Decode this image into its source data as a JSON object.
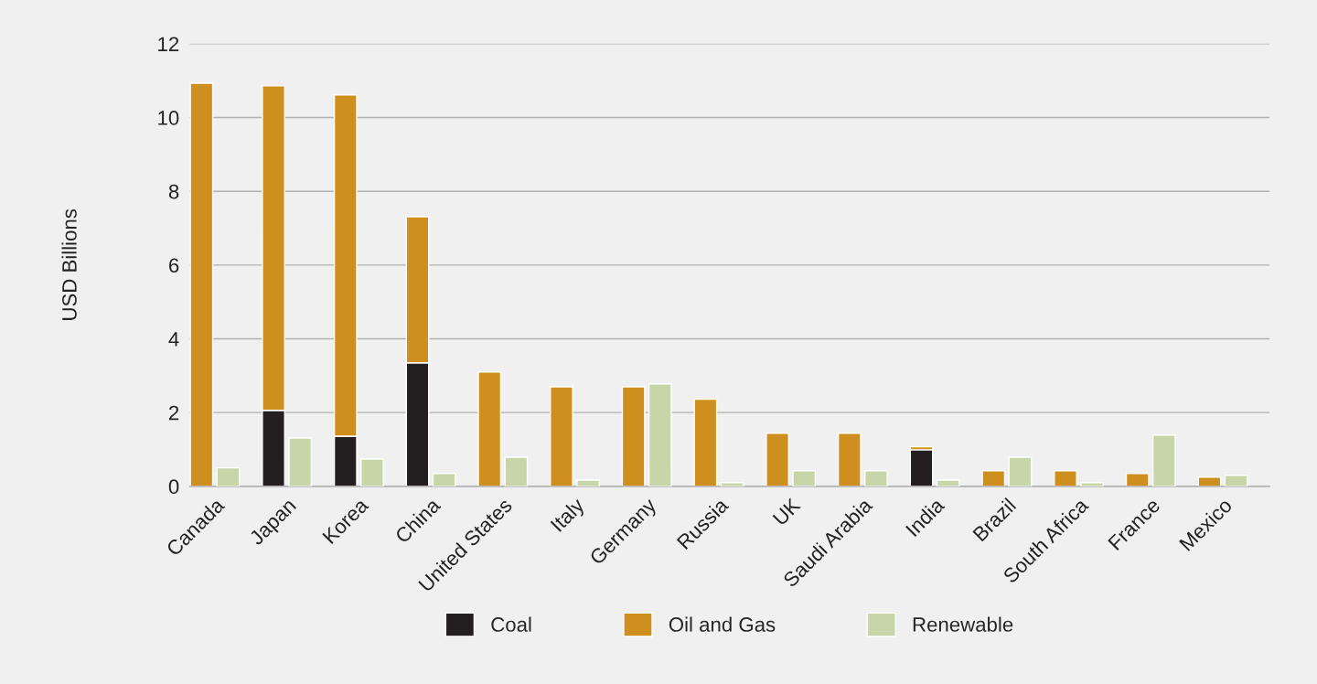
{
  "chart_data": [
    {
      "type": "bar",
      "stacked": true,
      "ylabel": "USD Billions",
      "categories": [
        "Canada",
        "Japan",
        "Korea",
        "China",
        "United States",
        "Italy",
        "Germany",
        "Russia",
        "UK",
        "Saudi Arabia",
        "India",
        "Brazil",
        "South Africa",
        "France",
        "Mexico"
      ],
      "series": [
        {
          "name": "Coal",
          "color": "#231f20",
          "values": [
            0,
            2.06,
            1.36,
            3.35,
            0,
            0,
            0,
            0,
            0,
            0,
            0.99,
            0,
            0,
            0,
            0
          ]
        },
        {
          "name": "Oil and Gas",
          "color": "#cf8f1e",
          "values": [
            10.93,
            8.8,
            9.25,
            3.96,
            3.1,
            2.7,
            2.7,
            2.36,
            1.44,
            1.44,
            0.08,
            0.42,
            0.42,
            0.35,
            0.25
          ]
        }
      ],
      "ylim": [
        0,
        12
      ],
      "yticks": [
        0,
        2,
        4,
        6,
        8,
        10,
        12
      ],
      "grid": "y",
      "legend": "bottom"
    },
    {
      "type": "bar",
      "categories": [
        null,
        null,
        null,
        null,
        null,
        null,
        null,
        null,
        null,
        null,
        null,
        null,
        null,
        null,
        null
      ],
      "series": [
        {
          "name": "Renewable",
          "color": "#c8d5a8",
          "values": [
            0.5,
            1.31,
            0.74,
            0.35,
            0.79,
            0.17,
            2.78,
            0.1,
            0.42,
            0.42,
            0.17,
            0.79,
            0.1,
            1.39,
            0.3
          ]
        }
      ],
      "ylim": [
        0,
        12
      ],
      "yticks": [
        0,
        2,
        4,
        6,
        8,
        10,
        12
      ],
      "tick_labels": false,
      "legend": "bottom"
    }
  ]
}
